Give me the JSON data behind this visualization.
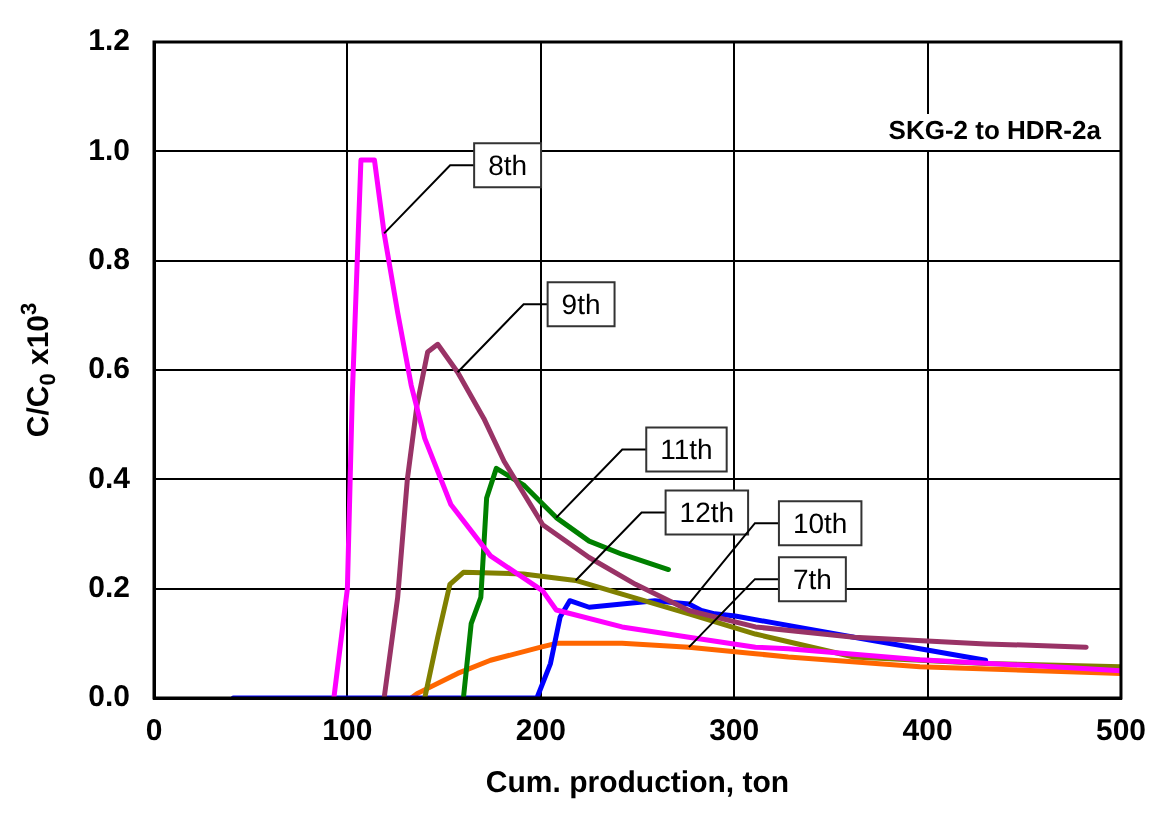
{
  "chart_data": {
    "type": "line",
    "xlabel": "Cum. production, ton",
    "ylabel": "C/C$_{0}$ x10$^{3}$",
    "xlim": [
      0,
      500
    ],
    "xticks": [
      0,
      100,
      200,
      300,
      400,
      500
    ],
    "ylim": [
      0,
      1.2
    ],
    "yticks": [
      {
        "value": 0,
        "label": "0.0"
      },
      {
        "value": 0.2,
        "label": "0.2"
      },
      {
        "value": 0.4,
        "label": "0.4"
      },
      {
        "value": 0.6,
        "label": "0.6"
      },
      {
        "value": 0.8,
        "label": "0.8"
      },
      {
        "value": 1,
        "label": "1.0"
      },
      {
        "value": 1.2,
        "label": "1.2"
      }
    ],
    "grid": true,
    "legend": false,
    "marker": "none",
    "line_style": "solid",
    "series": [
      {
        "color": "#ff00ff",
        "x": [
          93,
          100,
          102.5,
          107,
          114,
          119,
          126,
          133,
          140,
          153.5,
          174,
          201,
          208,
          242,
          276.6,
          311,
          328,
          396,
          465,
          500
        ],
        "values": [
          0,
          0.2,
          0.55,
          0.984,
          0.984,
          0.85,
          0.705,
          0.572,
          0.475,
          0.354,
          0.26,
          0.196,
          0.161,
          0.13,
          0.111,
          0.093,
          0.09,
          0.07,
          0.057,
          0.05
        ]
      },
      {
        "color": "#993366",
        "x": [
          119,
          126,
          131,
          136,
          141.5,
          146.7,
          157,
          170.6,
          181,
          201,
          225,
          249,
          276.6,
          311,
          362,
          430,
          482
        ],
        "values": [
          0,
          0.184,
          0.4,
          0.536,
          0.633,
          0.647,
          0.596,
          0.511,
          0.433,
          0.317,
          0.257,
          0.208,
          0.16,
          0.13,
          0.111,
          0.099,
          0.093
        ]
      },
      {
        "color": "#008000",
        "x": [
          160,
          164,
          169,
          172,
          177,
          191,
          208,
          225,
          242,
          266
        ],
        "values": [
          0,
          0.136,
          0.184,
          0.366,
          0.42,
          0.39,
          0.33,
          0.287,
          0.263,
          0.235
        ]
      },
      {
        "color": "#808000",
        "x": [
          140,
          146.7,
          153,
          160,
          191,
          218,
          242,
          276.6,
          311,
          362,
          430,
          500
        ],
        "values": [
          0,
          0.111,
          0.208,
          0.23,
          0.227,
          0.215,
          0.19,
          0.154,
          0.117,
          0.075,
          0.063,
          0.057
        ]
      },
      {
        "color": "#0000ff",
        "x": [
          41,
          198,
          205,
          210,
          215,
          225,
          242,
          259,
          276.6,
          283,
          290,
          300.5,
          362,
          430
        ],
        "values": [
          0,
          0,
          0.063,
          0.148,
          0.178,
          0.166,
          0.172,
          0.178,
          0.172,
          0.16,
          0.154,
          0.15,
          0.111,
          0.069
        ]
      },
      {
        "color": "#ff6600",
        "x": [
          133,
          136,
          157,
          174,
          200,
          208,
          242,
          276.6,
          311,
          328,
          396,
          500
        ],
        "values": [
          0,
          0.008,
          0.045,
          0.069,
          0.093,
          0.1,
          0.1,
          0.093,
          0.081,
          0.075,
          0.057,
          0.045
        ]
      }
    ],
    "annotations": [
      "SKG-2 to HDR-2a",
      {
        "text": "8th",
        "x": 119,
        "y": 0.85
      },
      {
        "text": "9th",
        "x": 157,
        "y": 0.596
      },
      {
        "text": "11th",
        "x": 208,
        "y": 0.33
      },
      {
        "text": "12th",
        "x": 218,
        "y": 0.215
      },
      {
        "text": "7th",
        "x": 276.6,
        "y": 0.093
      },
      {
        "text": "10th",
        "x": 276.6,
        "y": 0.172
      }
    ]
  }
}
